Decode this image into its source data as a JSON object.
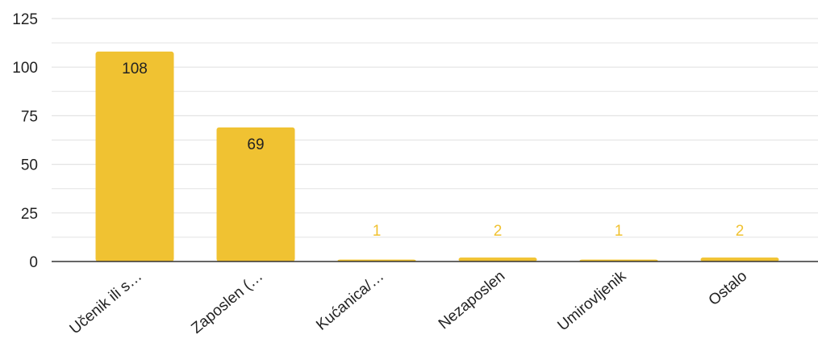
{
  "chart_data": {
    "type": "bar",
    "categories": [
      "Učenik ili s…",
      "Zaposlen (…",
      "Kućanica/…",
      "Nezaposlen",
      "Umirovljenik",
      "Ostalo"
    ],
    "values": [
      108,
      69,
      1,
      2,
      1,
      2
    ],
    "data_labels": [
      "108",
      "69",
      "1",
      "2",
      "1",
      "2"
    ],
    "y_ticks": [
      "0",
      "25",
      "50",
      "75",
      "100",
      "125"
    ],
    "y_tick_values": [
      0,
      25,
      50,
      75,
      100,
      125
    ],
    "ylim": [
      0,
      125
    ],
    "minor_gridlines": true,
    "title": "",
    "xlabel": "",
    "ylabel": "",
    "legend": "none",
    "bar_color": "#f0c232",
    "label_inside_color": "#222222",
    "label_outside_color": "#f0c232",
    "grid_color": "#e3e3e3",
    "axis_color": "#333333",
    "tick_label_color": "#222222"
  }
}
